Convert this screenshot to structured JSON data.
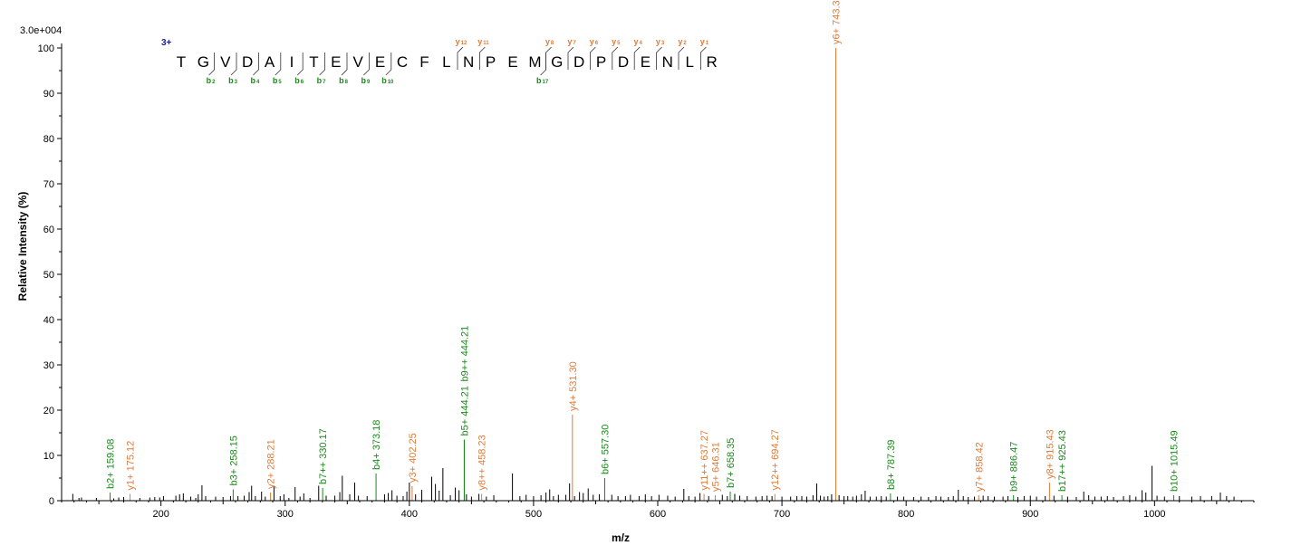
{
  "colors": {
    "b_ion": "#1a8a1a",
    "y_ion": "#e07b39",
    "noise": "#000000",
    "charge": "#1a1aa0"
  },
  "chart_data": {
    "type": "bar",
    "title": "",
    "xlabel": "m/z",
    "ylabel": "Relative   Intensity (%)",
    "max_intensity_label": "3.0e+004",
    "charge_label": "3+",
    "xlim": [
      120,
      1080
    ],
    "ylim": [
      0,
      100
    ],
    "x_ticks": [
      200,
      300,
      400,
      500,
      600,
      700,
      800,
      900,
      1000
    ],
    "y_ticks": [
      0,
      10,
      20,
      30,
      40,
      50,
      60,
      70,
      80,
      90,
      100
    ],
    "peptide": [
      "T",
      "G",
      "V",
      "D",
      "A",
      "I",
      "T",
      "E",
      "V",
      "E",
      "C",
      "F",
      "L",
      "N",
      "P",
      "E",
      "M",
      "G",
      "D",
      "P",
      "D",
      "E",
      "N",
      "L",
      "R"
    ],
    "b_ions_matched": [
      2,
      3,
      4,
      5,
      6,
      7,
      8,
      9,
      10,
      17
    ],
    "y_ions_matched": [
      12,
      11,
      8,
      7,
      6,
      5,
      4,
      3,
      2,
      1
    ],
    "annotated_peaks": [
      {
        "mz": 159.08,
        "intensity": 1.8,
        "label": "b2+ 159.08",
        "ion": "b"
      },
      {
        "mz": 175.12,
        "intensity": 1.5,
        "label": "y1+ 175.12",
        "ion": "y"
      },
      {
        "mz": 258.15,
        "intensity": 2.5,
        "label": "b3+ 258.15",
        "ion": "b"
      },
      {
        "mz": 288.21,
        "intensity": 1.8,
        "label": "y2+ 288.21",
        "ion": "y"
      },
      {
        "mz": 330.17,
        "intensity": 2.8,
        "label": "b7++ 330.17",
        "ion": "b"
      },
      {
        "mz": 373.18,
        "intensity": 6.0,
        "label": "b4+ 373.18",
        "ion": "b"
      },
      {
        "mz": 402.25,
        "intensity": 3.2,
        "label": "y3+ 402.25",
        "ion": "y"
      },
      {
        "mz": 444.21,
        "intensity": 13.5,
        "label": "b5+ 444.21",
        "ion": "b"
      },
      {
        "mz": 444.21,
        "intensity": 13.5,
        "label": "b9++ 444.21",
        "ion": "b"
      },
      {
        "mz": 458.23,
        "intensity": 1.5,
        "label": "y8++ 458.23",
        "ion": "y"
      },
      {
        "mz": 531.3,
        "intensity": 19.0,
        "label": "y4+ 531.30",
        "ion": "y"
      },
      {
        "mz": 557.3,
        "intensity": 5.0,
        "label": "b6+ 557.30",
        "ion": "b"
      },
      {
        "mz": 637.27,
        "intensity": 1.5,
        "label": "y11++ 637.27",
        "ion": "y"
      },
      {
        "mz": 646.31,
        "intensity": 1.2,
        "label": "y5+ 646.31",
        "ion": "y"
      },
      {
        "mz": 658.35,
        "intensity": 2.0,
        "label": "b7+ 658.35",
        "ion": "b"
      },
      {
        "mz": 694.27,
        "intensity": 1.5,
        "label": "y12++ 694.27",
        "ion": "y"
      },
      {
        "mz": 743.36,
        "intensity": 100,
        "label": "y6+ 743.36",
        "ion": "y"
      },
      {
        "mz": 787.39,
        "intensity": 1.6,
        "label": "b8+ 787.39",
        "ion": "b"
      },
      {
        "mz": 858.42,
        "intensity": 1.2,
        "label": "y7+ 858.42",
        "ion": "y"
      },
      {
        "mz": 886.47,
        "intensity": 1.2,
        "label": "b9+ 886.47",
        "ion": "b"
      },
      {
        "mz": 915.43,
        "intensity": 4.0,
        "label": "y8+ 915.43",
        "ion": "y"
      },
      {
        "mz": 925.43,
        "intensity": 1.2,
        "label": "b17++ 925.43",
        "ion": "b"
      },
      {
        "mz": 1015.49,
        "intensity": 1.2,
        "label": "b10+ 1015.49",
        "ion": "b"
      }
    ],
    "unannotated_peaks": [
      [
        129,
        1.5
      ],
      [
        134,
        0.6
      ],
      [
        136,
        0.7
      ],
      [
        148,
        0.6
      ],
      [
        162,
        0.5
      ],
      [
        166,
        0.7
      ],
      [
        170,
        0.8
      ],
      [
        183,
        0.6
      ],
      [
        191,
        0.7
      ],
      [
        195,
        0.8
      ],
      [
        199,
        0.7
      ],
      [
        202,
        1.0
      ],
      [
        212,
        1.1
      ],
      [
        215,
        1.4
      ],
      [
        218,
        1.6
      ],
      [
        224,
        0.9
      ],
      [
        228,
        0.6
      ],
      [
        230,
        1.4
      ],
      [
        233,
        3.4
      ],
      [
        236,
        1.0
      ],
      [
        244,
        0.9
      ],
      [
        250,
        0.8
      ],
      [
        256,
        1.0
      ],
      [
        262,
        1.0
      ],
      [
        267,
        1.1
      ],
      [
        271,
        1.9
      ],
      [
        273,
        3.3
      ],
      [
        276,
        1.0
      ],
      [
        281,
        2.0
      ],
      [
        284,
        0.9
      ],
      [
        291,
        3.3
      ],
      [
        296,
        1.0
      ],
      [
        299,
        1.4
      ],
      [
        303,
        0.6
      ],
      [
        308,
        3.0
      ],
      [
        312,
        0.9
      ],
      [
        315,
        1.6
      ],
      [
        320,
        0.6
      ],
      [
        327,
        3.3
      ],
      [
        333,
        1.1
      ],
      [
        340,
        1.1
      ],
      [
        344,
        1.9
      ],
      [
        346,
        5.5
      ],
      [
        352,
        1.4
      ],
      [
        356,
        4.0
      ],
      [
        359,
        1.1
      ],
      [
        366,
        1.0
      ],
      [
        380,
        1.4
      ],
      [
        383,
        1.7
      ],
      [
        386,
        2.3
      ],
      [
        390,
        1.1
      ],
      [
        395,
        1.0
      ],
      [
        398,
        2.0
      ],
      [
        400,
        4.0
      ],
      [
        405,
        1.4
      ],
      [
        410,
        2.4
      ],
      [
        418,
        5.3
      ],
      [
        421,
        3.7
      ],
      [
        424,
        2.2
      ],
      [
        427,
        7.2
      ],
      [
        433,
        1.2
      ],
      [
        437,
        2.9
      ],
      [
        440,
        2.3
      ],
      [
        446,
        1.4
      ],
      [
        450,
        0.9
      ],
      [
        456,
        1.5
      ],
      [
        462,
        0.9
      ],
      [
        468,
        1.2
      ],
      [
        483,
        6.0
      ],
      [
        489,
        1.0
      ],
      [
        494,
        1.3
      ],
      [
        500,
        1.0
      ],
      [
        506,
        1.2
      ],
      [
        510,
        1.8
      ],
      [
        513,
        2.5
      ],
      [
        516,
        1.0
      ],
      [
        520,
        1.3
      ],
      [
        526,
        1.3
      ],
      [
        529,
        3.8
      ],
      [
        533,
        1.0
      ],
      [
        537,
        1.9
      ],
      [
        540,
        1.7
      ],
      [
        544,
        2.7
      ],
      [
        548,
        1.3
      ],
      [
        553,
        1.4
      ],
      [
        563,
        1.3
      ],
      [
        568,
        1.0
      ],
      [
        574,
        1.0
      ],
      [
        578,
        1.3
      ],
      [
        585,
        1.0
      ],
      [
        590,
        1.4
      ],
      [
        595,
        1.0
      ],
      [
        601,
        1.3
      ],
      [
        608,
        1.1
      ],
      [
        614,
        0.9
      ],
      [
        621,
        2.6
      ],
      [
        625,
        1.0
      ],
      [
        630,
        0.9
      ],
      [
        634,
        1.7
      ],
      [
        641,
        1.0
      ],
      [
        652,
        1.3
      ],
      [
        656,
        1.0
      ],
      [
        662,
        1.5
      ],
      [
        666,
        1.1
      ],
      [
        672,
        1.0
      ],
      [
        679,
        0.9
      ],
      [
        684,
        1.0
      ],
      [
        688,
        1.1
      ],
      [
        692,
        1.0
      ],
      [
        700,
        0.9
      ],
      [
        707,
        0.9
      ],
      [
        712,
        1.0
      ],
      [
        716,
        1.0
      ],
      [
        720,
        0.9
      ],
      [
        725,
        1.2
      ],
      [
        728,
        3.8
      ],
      [
        731,
        1.1
      ],
      [
        734,
        0.9
      ],
      [
        737,
        1.0
      ],
      [
        740,
        1.4
      ],
      [
        746,
        1.2
      ],
      [
        750,
        1.0
      ],
      [
        753,
        1.0
      ],
      [
        757,
        0.9
      ],
      [
        760,
        1.1
      ],
      [
        764,
        1.4
      ],
      [
        767,
        2.2
      ],
      [
        771,
        0.9
      ],
      [
        776,
        0.9
      ],
      [
        780,
        1.0
      ],
      [
        784,
        0.9
      ],
      [
        793,
        0.9
      ],
      [
        798,
        0.9
      ],
      [
        806,
        0.8
      ],
      [
        812,
        0.9
      ],
      [
        818,
        0.8
      ],
      [
        824,
        1.0
      ],
      [
        828,
        0.9
      ],
      [
        834,
        0.8
      ],
      [
        838,
        1.0
      ],
      [
        842,
        2.4
      ],
      [
        846,
        1.0
      ],
      [
        850,
        0.8
      ],
      [
        855,
        0.9
      ],
      [
        862,
        1.1
      ],
      [
        866,
        1.0
      ],
      [
        871,
        0.9
      ],
      [
        878,
        0.9
      ],
      [
        882,
        1.0
      ],
      [
        890,
        0.8
      ],
      [
        895,
        1.0
      ],
      [
        900,
        1.1
      ],
      [
        905,
        0.9
      ],
      [
        912,
        1.0
      ],
      [
        919,
        1.1
      ],
      [
        930,
        0.9
      ],
      [
        937,
        0.8
      ],
      [
        943,
        2.0
      ],
      [
        947,
        1.2
      ],
      [
        952,
        0.9
      ],
      [
        957,
        0.9
      ],
      [
        962,
        1.0
      ],
      [
        967,
        0.8
      ],
      [
        975,
        1.0
      ],
      [
        980,
        1.2
      ],
      [
        985,
        0.9
      ],
      [
        990,
        2.3
      ],
      [
        993,
        1.8
      ],
      [
        998,
        7.7
      ],
      [
        1002,
        1.1
      ],
      [
        1008,
        0.9
      ],
      [
        1020,
        1.0
      ],
      [
        1030,
        0.9
      ],
      [
        1037,
        1.0
      ],
      [
        1046,
        1.0
      ],
      [
        1053,
        1.8
      ],
      [
        1058,
        1.0
      ],
      [
        1064,
        0.9
      ]
    ]
  }
}
